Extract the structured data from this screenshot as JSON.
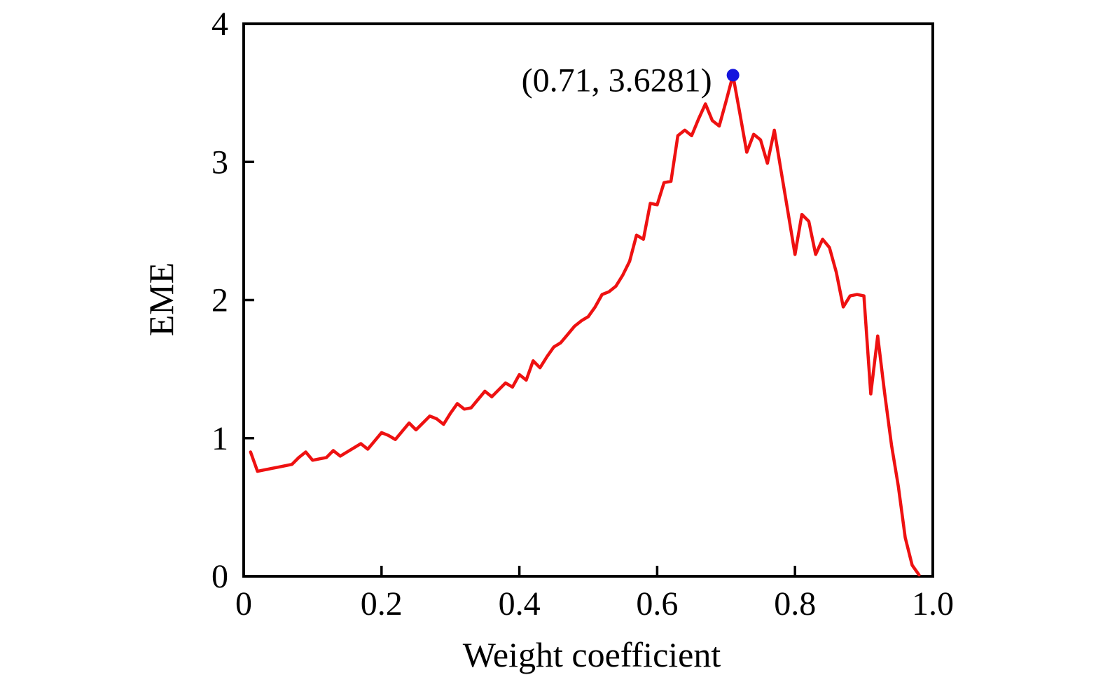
{
  "figure": {
    "background": "#ffffff",
    "axis_color": "#000000"
  },
  "chart_data": {
    "type": "line",
    "title": "",
    "xlabel": "Weight coefficient",
    "ylabel": "EME",
    "xlim": [
      0,
      1.0
    ],
    "ylim": [
      0,
      4
    ],
    "grid": false,
    "legend": "none",
    "line_color": "#ee1111",
    "marker_color": "#1414dd",
    "x_tick_values": [
      0,
      0.2,
      0.4,
      0.6,
      0.8,
      1.0
    ],
    "x_tick_labels": [
      "0",
      "0.2",
      "0.4",
      "0.6",
      "0.8",
      "1.0"
    ],
    "y_tick_values": [
      0,
      1,
      2,
      3,
      4
    ],
    "y_tick_labels": [
      "0",
      "1",
      "2",
      "3",
      "4"
    ],
    "annotation": {
      "text": "(0.71, 3.6281)",
      "x": 0.71,
      "y": 3.6281
    },
    "peak": {
      "x": 0.71,
      "y": 3.6281
    },
    "series": [
      {
        "name": "EME",
        "x": [
          0.01,
          0.02,
          0.03,
          0.04,
          0.05,
          0.06,
          0.07,
          0.08,
          0.09,
          0.1,
          0.11,
          0.12,
          0.13,
          0.14,
          0.15,
          0.16,
          0.17,
          0.18,
          0.19,
          0.2,
          0.21,
          0.22,
          0.23,
          0.24,
          0.25,
          0.26,
          0.27,
          0.28,
          0.29,
          0.3,
          0.31,
          0.32,
          0.33,
          0.34,
          0.35,
          0.36,
          0.37,
          0.38,
          0.39,
          0.4,
          0.41,
          0.42,
          0.43,
          0.44,
          0.45,
          0.46,
          0.47,
          0.48,
          0.49,
          0.5,
          0.51,
          0.52,
          0.53,
          0.54,
          0.55,
          0.56,
          0.57,
          0.58,
          0.59,
          0.6,
          0.61,
          0.62,
          0.63,
          0.64,
          0.65,
          0.66,
          0.67,
          0.68,
          0.69,
          0.7,
          0.71,
          0.72,
          0.73,
          0.74,
          0.75,
          0.76,
          0.77,
          0.78,
          0.79,
          0.8,
          0.81,
          0.82,
          0.83,
          0.84,
          0.85,
          0.86,
          0.87,
          0.88,
          0.89,
          0.9,
          0.91,
          0.92,
          0.93,
          0.94,
          0.95,
          0.96,
          0.97,
          0.98
        ],
        "y": [
          0.9,
          0.76,
          0.77,
          0.78,
          0.79,
          0.8,
          0.81,
          0.86,
          0.9,
          0.84,
          0.85,
          0.86,
          0.91,
          0.87,
          0.9,
          0.93,
          0.96,
          0.92,
          0.98,
          1.04,
          1.02,
          0.99,
          1.05,
          1.11,
          1.06,
          1.11,
          1.16,
          1.14,
          1.1,
          1.18,
          1.25,
          1.21,
          1.22,
          1.28,
          1.34,
          1.3,
          1.35,
          1.4,
          1.37,
          1.46,
          1.42,
          1.56,
          1.51,
          1.59,
          1.66,
          1.69,
          1.75,
          1.81,
          1.85,
          1.88,
          1.95,
          2.04,
          2.06,
          2.1,
          2.18,
          2.28,
          2.47,
          2.44,
          2.7,
          2.69,
          2.85,
          2.86,
          3.19,
          3.23,
          3.19,
          3.31,
          3.42,
          3.3,
          3.26,
          3.44,
          3.6281,
          3.35,
          3.07,
          3.2,
          3.16,
          2.99,
          3.23,
          2.93,
          2.63,
          2.33,
          2.62,
          2.57,
          2.33,
          2.44,
          2.38,
          2.2,
          1.95,
          2.03,
          2.04,
          2.03,
          1.32,
          1.74,
          1.33,
          0.95,
          0.65,
          0.28,
          0.08,
          0.01
        ]
      }
    ]
  }
}
